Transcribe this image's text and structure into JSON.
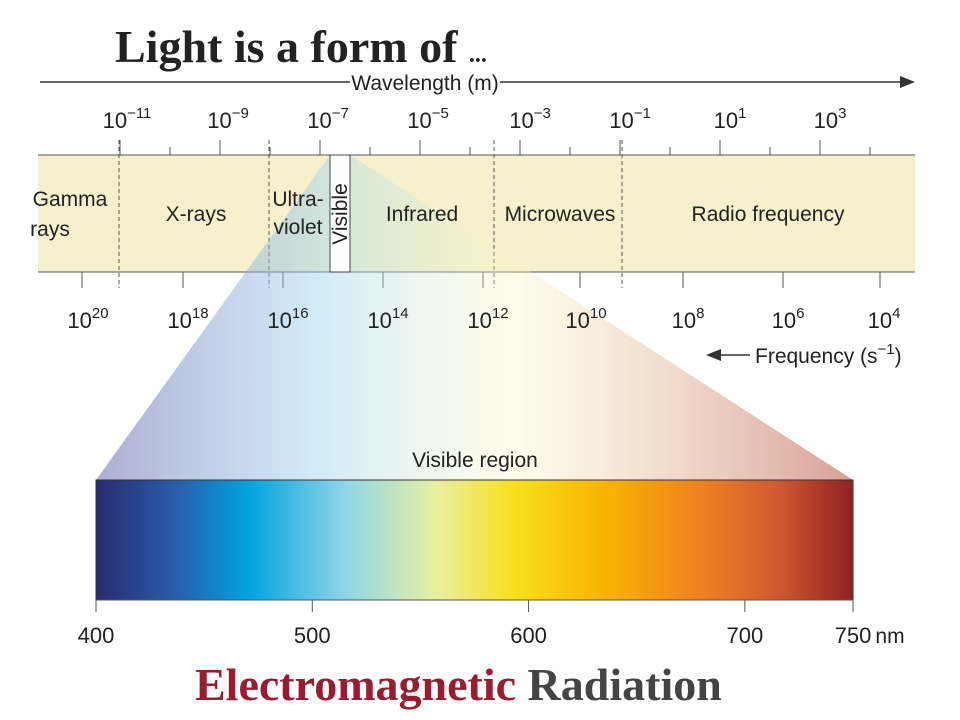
{
  "header": {
    "title": "Light is a form of",
    "ellipsis": "..."
  },
  "wavelength_axis": {
    "label": "Wavelength (m)",
    "ticks": [
      {
        "base": "10",
        "exponent": "−11"
      },
      {
        "base": "10",
        "exponent": "−9"
      },
      {
        "base": "10",
        "exponent": "−7"
      },
      {
        "base": "10",
        "exponent": "−5"
      },
      {
        "base": "10",
        "exponent": "−3"
      },
      {
        "base": "10",
        "exponent": "−1"
      },
      {
        "base": "10",
        "exponent": "1"
      },
      {
        "base": "10",
        "exponent": "3"
      }
    ]
  },
  "regions": [
    {
      "lines": [
        "Gamma",
        "rays"
      ]
    },
    {
      "lines": [
        "X-rays"
      ]
    },
    {
      "lines": [
        "Ultra-",
        "violet"
      ]
    },
    {
      "lines": [
        "Visible"
      ]
    },
    {
      "lines": [
        "Infrared"
      ]
    },
    {
      "lines": [
        "Microwaves"
      ]
    },
    {
      "lines": [
        "Radio frequency"
      ]
    }
  ],
  "frequency_axis": {
    "label": "Frequency (s",
    "label_exponent": "−1",
    "label_end": ")",
    "ticks": [
      {
        "base": "10",
        "exponent": "20"
      },
      {
        "base": "10",
        "exponent": "18"
      },
      {
        "base": "10",
        "exponent": "16"
      },
      {
        "base": "10",
        "exponent": "14"
      },
      {
        "base": "10",
        "exponent": "12"
      },
      {
        "base": "10",
        "exponent": "10"
      },
      {
        "base": "10",
        "exponent": "8"
      },
      {
        "base": "10",
        "exponent": "6"
      },
      {
        "base": "10",
        "exponent": "4"
      }
    ]
  },
  "visible_region": {
    "label": "Visible region",
    "ticks": [
      400,
      500,
      600,
      700,
      750
    ],
    "unit": "nm"
  },
  "footer": {
    "title_part1": "Electromagnetic",
    "title_part2": "Radiation"
  }
}
